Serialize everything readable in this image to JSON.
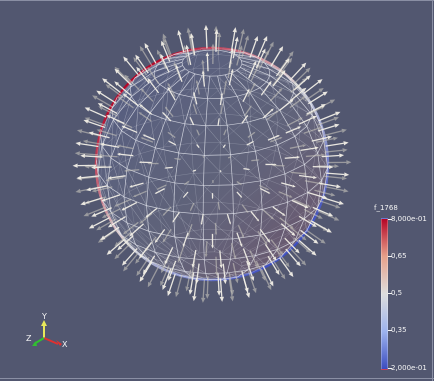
{
  "viewport": {
    "background_color": "#525770",
    "object": "sphere mesh glyph field"
  },
  "legend": {
    "title": "f_1768",
    "ticks": [
      {
        "label": "8,000e-01"
      },
      {
        "label": "0,65"
      },
      {
        "label": "0,5"
      },
      {
        "label": "0,35"
      },
      {
        "label": "2,000e-01"
      }
    ],
    "color_low": "#3b4cc0",
    "color_mid": "#dddddd",
    "color_high": "#b40426"
  },
  "orientation_axes": {
    "x_label": "X",
    "y_label": "Y",
    "z_label": "Z",
    "x_color": "#e03030",
    "y_color": "#e8e85a",
    "z_color": "#30c030"
  }
}
